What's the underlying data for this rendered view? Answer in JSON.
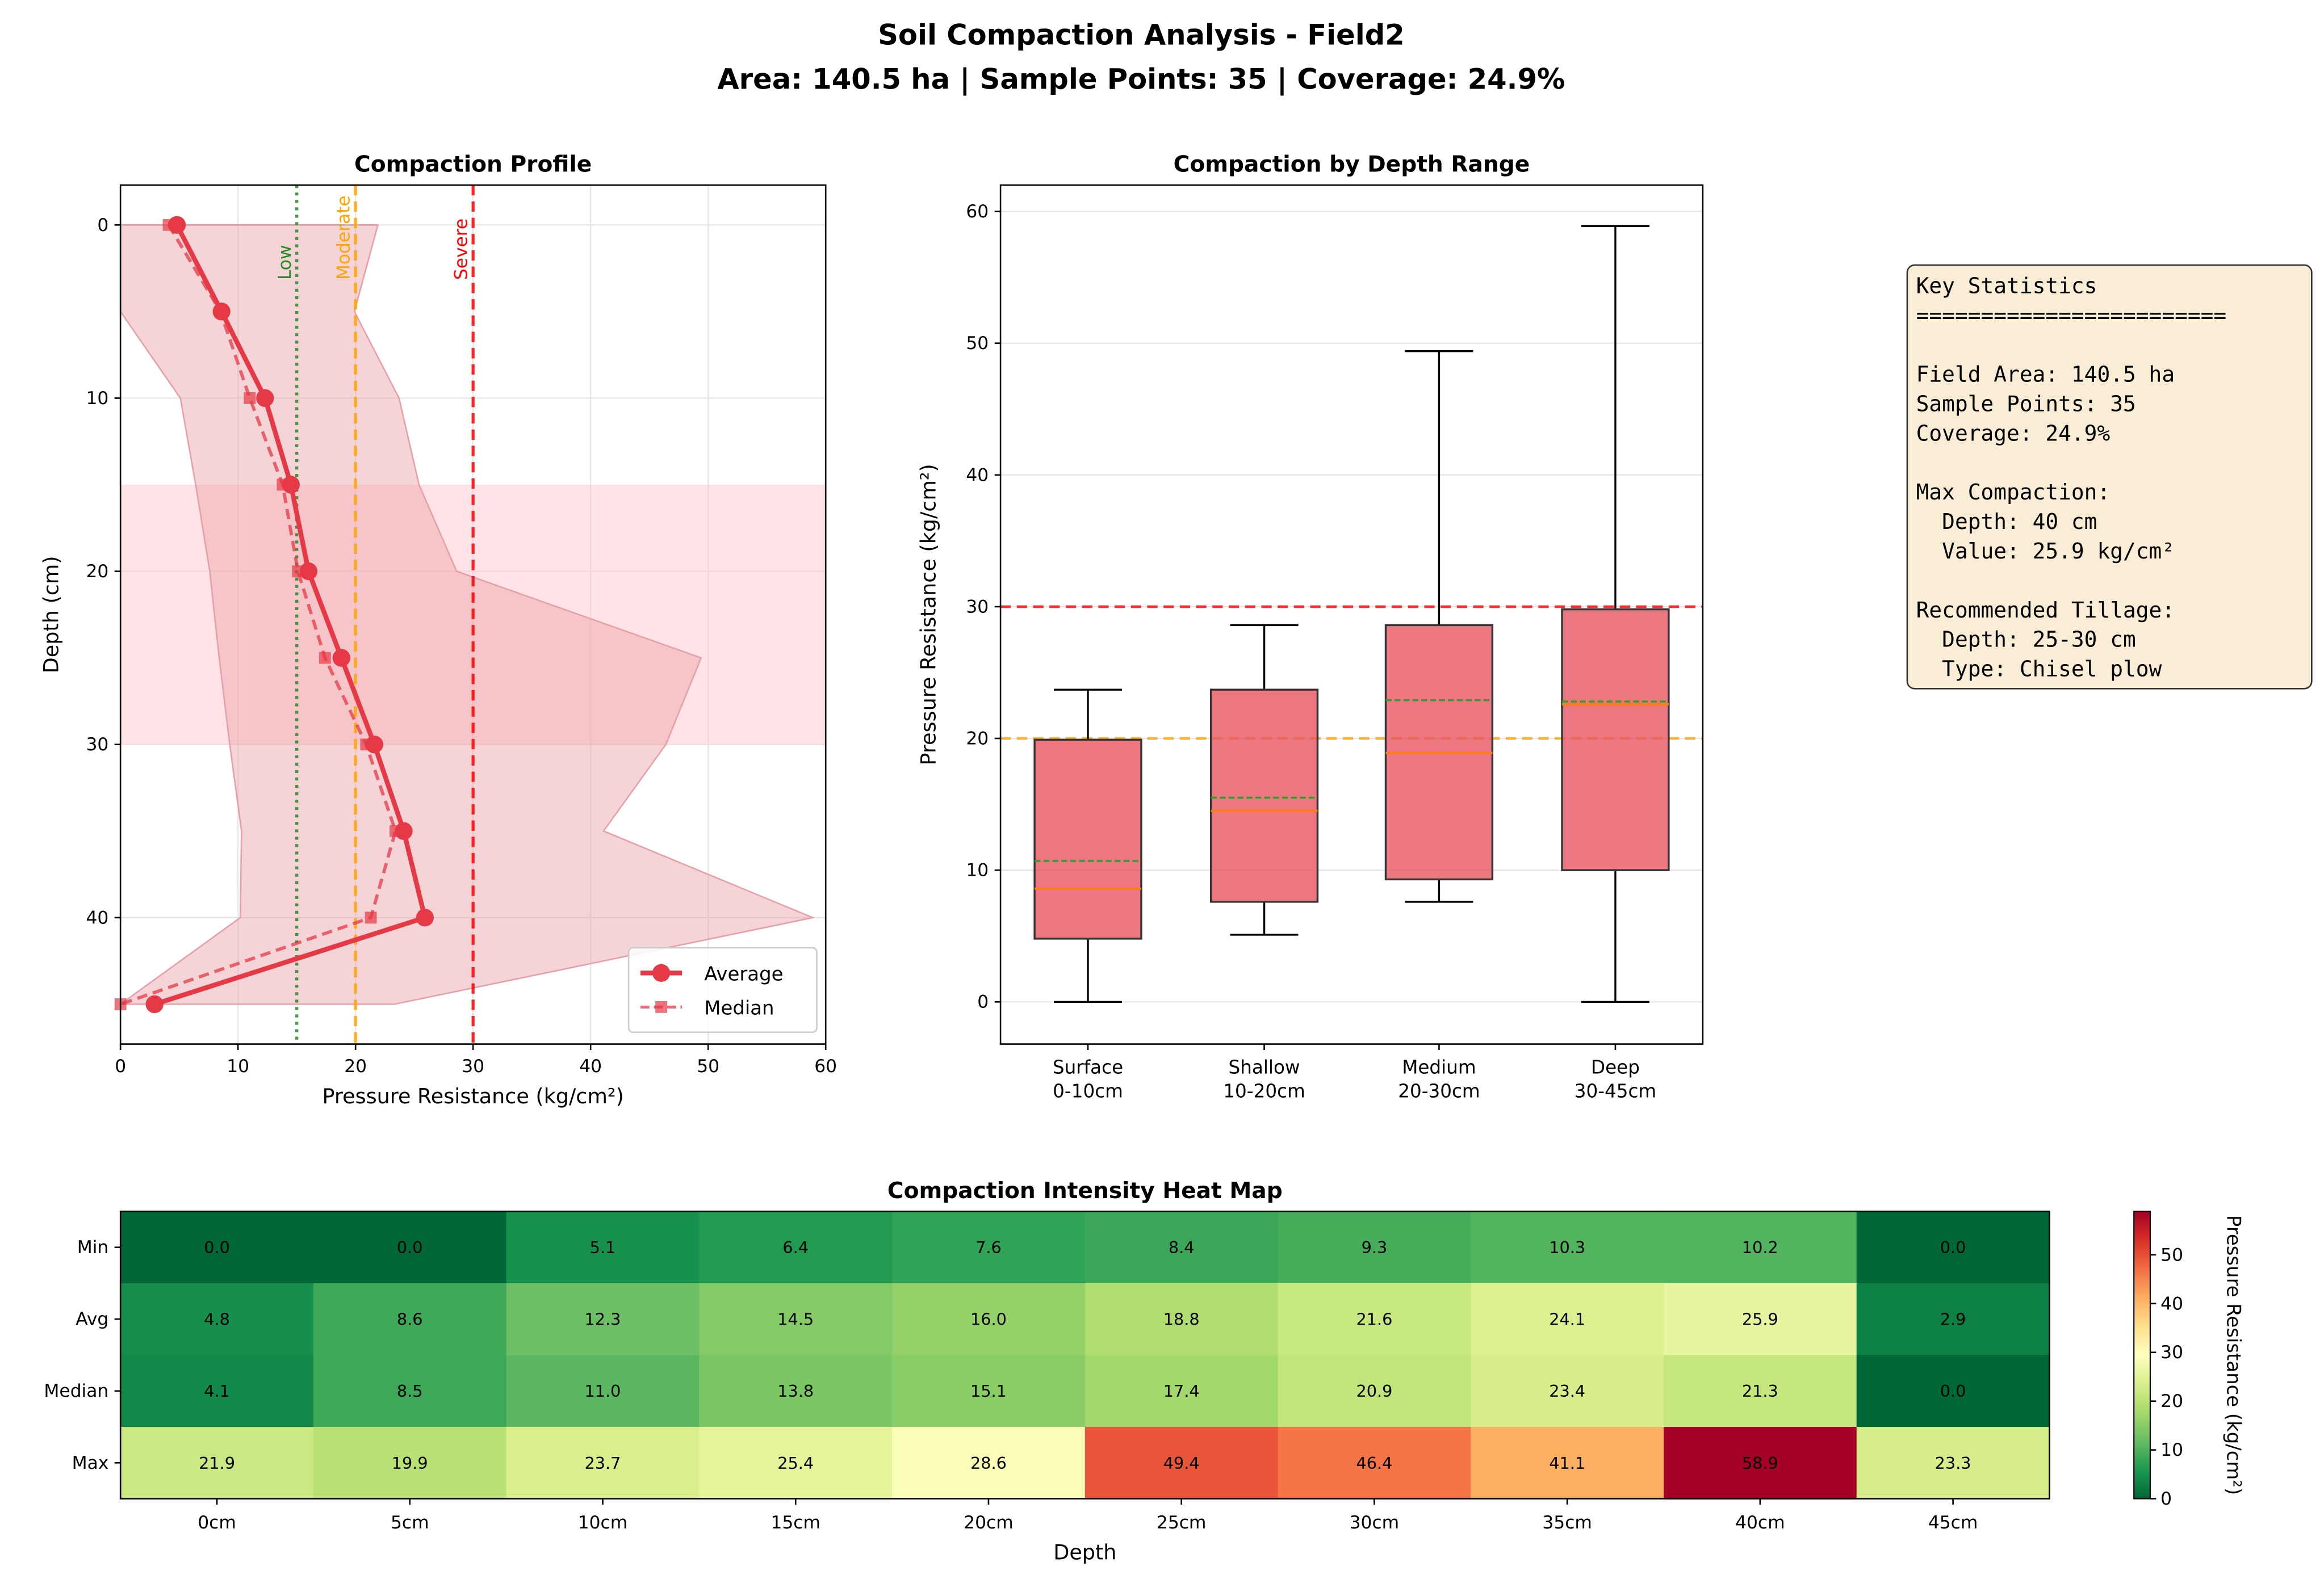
{
  "title_line1": "Soil Compaction Analysis - Field2",
  "title_line2": "Area: 140.5 ha | Sample Points: 35 | Coverage: 24.9%",
  "colors": {
    "average": "#e63946",
    "fill": "#e8a0a8",
    "band": "#ffc0c8",
    "low": "#228b22",
    "moderate": "#ffa500",
    "severe": "#ff0000",
    "box": "#e85560",
    "median_line": "#ff7f0e",
    "mean_line": "#2ca02c",
    "stats_bg": "#f5deb3"
  },
  "chart_data": [
    {
      "type": "line",
      "title": "Compaction Profile",
      "xlabel": "Pressure Resistance (kg/cm²)",
      "ylabel": "Depth (cm)",
      "xlim": [
        0,
        60
      ],
      "ylim": [
        47.3,
        -2.3
      ],
      "y_inverted": true,
      "xticks": [
        0,
        10,
        20,
        30,
        40,
        50,
        60
      ],
      "yticks": [
        0,
        10,
        20,
        30,
        40
      ],
      "grid": true,
      "depths": [
        0,
        5,
        10,
        15,
        20,
        25,
        30,
        35,
        40,
        45
      ],
      "series": [
        {
          "name": "Average",
          "values": [
            4.8,
            8.6,
            12.3,
            14.5,
            16.0,
            18.8,
            21.6,
            24.1,
            25.9,
            2.9
          ]
        },
        {
          "name": "Median",
          "values": [
            4.1,
            8.5,
            11.0,
            13.8,
            15.1,
            17.4,
            20.9,
            23.4,
            21.3,
            0.0
          ]
        }
      ],
      "range_fill": {
        "min": [
          0.0,
          0.0,
          5.1,
          6.4,
          7.6,
          8.4,
          9.3,
          10.3,
          10.2,
          0.0
        ],
        "max": [
          21.9,
          19.9,
          23.7,
          25.4,
          28.6,
          49.4,
          46.4,
          41.1,
          58.9,
          23.3
        ]
      },
      "highlight_band": [
        15,
        30
      ],
      "thresholds": [
        {
          "label": "Low",
          "value": 15,
          "style": "dotted"
        },
        {
          "label": "Moderate",
          "value": 20,
          "style": "dashed"
        },
        {
          "label": "Severe",
          "value": 30,
          "style": "dashed"
        }
      ],
      "legend": "lower-right"
    },
    {
      "type": "box",
      "title": "Compaction by Depth Range",
      "ylabel": "Pressure Resistance (kg/cm²)",
      "ylim": [
        -3.2,
        62
      ],
      "yticks": [
        0,
        10,
        20,
        30,
        40,
        50,
        60
      ],
      "grid": true,
      "categories": [
        "Surface\n0-10cm",
        "Shallow\n10-20cm",
        "Medium\n20-30cm",
        "Deep\n30-45cm"
      ],
      "boxes": [
        {
          "whislo": 0.0,
          "q1": 4.8,
          "median": 8.6,
          "mean": 10.7,
          "q3": 19.9,
          "whishi": 23.7
        },
        {
          "whislo": 5.1,
          "q1": 7.6,
          "median": 14.5,
          "mean": 15.5,
          "q3": 23.7,
          "whishi": 28.6
        },
        {
          "whislo": 7.6,
          "q1": 9.3,
          "median": 18.9,
          "mean": 22.9,
          "q3": 28.6,
          "whishi": 49.4
        },
        {
          "whislo": 0.0,
          "q1": 10.0,
          "median": 22.6,
          "mean": 22.8,
          "q3": 29.8,
          "whishi": 58.9
        }
      ],
      "hlines": [
        20,
        30
      ]
    },
    {
      "type": "heatmap",
      "title": "Compaction Intensity Heat Map",
      "xlabel": "Depth",
      "x": [
        "0cm",
        "5cm",
        "10cm",
        "15cm",
        "20cm",
        "25cm",
        "30cm",
        "35cm",
        "40cm",
        "45cm"
      ],
      "y": [
        "Min",
        "Avg",
        "Median",
        "Max"
      ],
      "values": [
        [
          0.0,
          0.0,
          5.1,
          6.4,
          7.6,
          8.4,
          9.3,
          10.3,
          10.2,
          0.0
        ],
        [
          4.8,
          8.6,
          12.3,
          14.5,
          16.0,
          18.8,
          21.6,
          24.1,
          25.9,
          2.9
        ],
        [
          4.1,
          8.5,
          11.0,
          13.8,
          15.1,
          17.4,
          20.9,
          23.4,
          21.3,
          0.0
        ],
        [
          21.9,
          19.9,
          23.7,
          25.4,
          28.6,
          49.4,
          46.4,
          41.1,
          58.9,
          23.3
        ]
      ],
      "colormap": "RdYlGn_r",
      "vmin": 0,
      "vmax": 58.9,
      "colorbar_label": "Pressure Resistance (kg/cm²)",
      "colorbar_ticks": [
        0,
        10,
        20,
        30,
        40,
        50
      ]
    }
  ],
  "stats_box": {
    "lines": [
      "Key Statistics",
      "========================",
      "",
      "Field Area: 140.5 ha",
      "Sample Points: 35",
      "Coverage: 24.9%",
      "",
      "Max Compaction:",
      "  Depth: 40 cm",
      "  Value: 25.9 kg/cm²",
      "",
      "Recommended Tillage:",
      "  Depth: 25-30 cm",
      "  Type: Chisel plow"
    ]
  }
}
